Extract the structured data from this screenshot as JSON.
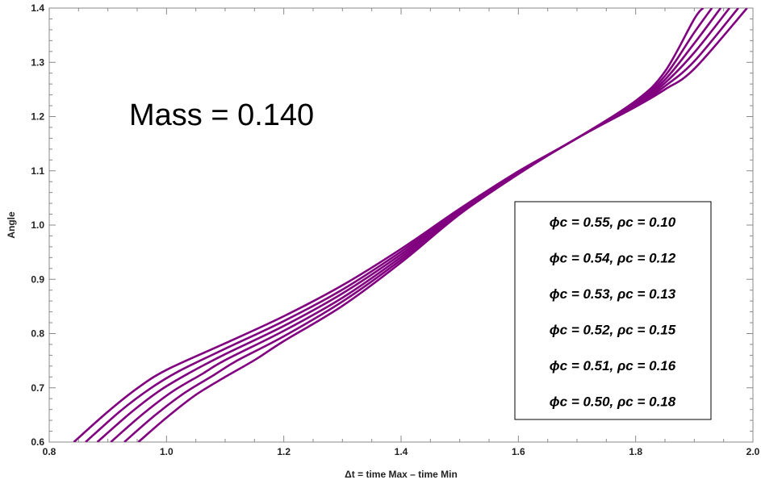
{
  "chart_data": {
    "type": "line",
    "title": "",
    "annotation": "Mass = 0.140",
    "xlabel": "Δt = time Max – time Min",
    "ylabel": "Angle",
    "xlim": [
      0.8,
      2.0
    ],
    "ylim": [
      0.6,
      1.4
    ],
    "x_ticks": [
      "0.8",
      "1.0",
      "1.2",
      "1.4",
      "1.6",
      "1.8",
      "2.0"
    ],
    "y_ticks": [
      "0.6",
      "0.7",
      "0.8",
      "0.9",
      "1.0",
      "1.1",
      "1.2",
      "1.3",
      "1.4"
    ],
    "grid": false,
    "legend_position": "bottom-right",
    "line_color": "#800080",
    "series": [
      {
        "name": "ϕc = 0.55, ρc = 0.10",
        "points": [
          [
            0.842,
            0.6
          ],
          [
            0.9,
            0.656
          ],
          [
            0.95,
            0.699
          ],
          [
            1.0,
            0.733
          ],
          [
            1.1,
            0.782
          ],
          [
            1.2,
            0.832
          ],
          [
            1.3,
            0.889
          ],
          [
            1.4,
            0.956
          ],
          [
            1.5,
            1.03
          ],
          [
            1.6,
            1.099
          ],
          [
            1.7,
            1.16
          ],
          [
            1.8,
            1.229
          ],
          [
            1.85,
            1.283
          ],
          [
            1.9,
            1.38
          ],
          [
            1.915,
            1.4
          ]
        ]
      },
      {
        "name": "ϕc = 0.54, ρc = 0.12",
        "points": [
          [
            0.862,
            0.6
          ],
          [
            0.92,
            0.656
          ],
          [
            0.97,
            0.697
          ],
          [
            1.02,
            0.73
          ],
          [
            1.1,
            0.772
          ],
          [
            1.2,
            0.823
          ],
          [
            1.3,
            0.881
          ],
          [
            1.4,
            0.951
          ],
          [
            1.5,
            1.028
          ],
          [
            1.6,
            1.098
          ],
          [
            1.7,
            1.16
          ],
          [
            1.8,
            1.226
          ],
          [
            1.85,
            1.275
          ],
          [
            1.9,
            1.355
          ],
          [
            1.93,
            1.4
          ]
        ]
      },
      {
        "name": "ϕc = 0.53, ρc = 0.13",
        "points": [
          [
            0.882,
            0.6
          ],
          [
            0.94,
            0.655
          ],
          [
            0.99,
            0.696
          ],
          [
            1.04,
            0.728
          ],
          [
            1.1,
            0.762
          ],
          [
            1.2,
            0.814
          ],
          [
            1.3,
            0.874
          ],
          [
            1.4,
            0.946
          ],
          [
            1.5,
            1.026
          ],
          [
            1.6,
            1.097
          ],
          [
            1.7,
            1.16
          ],
          [
            1.8,
            1.224
          ],
          [
            1.85,
            1.268
          ],
          [
            1.9,
            1.335
          ],
          [
            1.945,
            1.4
          ]
        ]
      },
      {
        "name": "ϕc = 0.52, ρc = 0.15",
        "points": [
          [
            0.905,
            0.6
          ],
          [
            0.96,
            0.652
          ],
          [
            1.01,
            0.693
          ],
          [
            1.06,
            0.725
          ],
          [
            1.1,
            0.751
          ],
          [
            1.2,
            0.805
          ],
          [
            1.3,
            0.866
          ],
          [
            1.4,
            0.941
          ],
          [
            1.5,
            1.024
          ],
          [
            1.6,
            1.096
          ],
          [
            1.7,
            1.16
          ],
          [
            1.8,
            1.222
          ],
          [
            1.85,
            1.262
          ],
          [
            1.9,
            1.318
          ],
          [
            1.96,
            1.4
          ]
        ]
      },
      {
        "name": "ϕc = 0.51, ρc = 0.16",
        "points": [
          [
            0.928,
            0.6
          ],
          [
            0.98,
            0.649
          ],
          [
            1.03,
            0.69
          ],
          [
            1.08,
            0.723
          ],
          [
            1.12,
            0.75
          ],
          [
            1.2,
            0.795
          ],
          [
            1.3,
            0.859
          ],
          [
            1.4,
            0.936
          ],
          [
            1.5,
            1.022
          ],
          [
            1.6,
            1.095
          ],
          [
            1.7,
            1.16
          ],
          [
            1.8,
            1.22
          ],
          [
            1.85,
            1.256
          ],
          [
            1.9,
            1.302
          ],
          [
            1.975,
            1.4
          ]
        ]
      },
      {
        "name": "ϕc = 0.50, ρc = 0.18",
        "points": [
          [
            0.952,
            0.6
          ],
          [
            1.0,
            0.645
          ],
          [
            1.05,
            0.687
          ],
          [
            1.1,
            0.72
          ],
          [
            1.15,
            0.751
          ],
          [
            1.2,
            0.786
          ],
          [
            1.3,
            0.851
          ],
          [
            1.4,
            0.931
          ],
          [
            1.5,
            1.02
          ],
          [
            1.6,
            1.094
          ],
          [
            1.7,
            1.16
          ],
          [
            1.8,
            1.218
          ],
          [
            1.85,
            1.25
          ],
          [
            1.9,
            1.288
          ],
          [
            1.99,
            1.4
          ]
        ]
      }
    ]
  }
}
